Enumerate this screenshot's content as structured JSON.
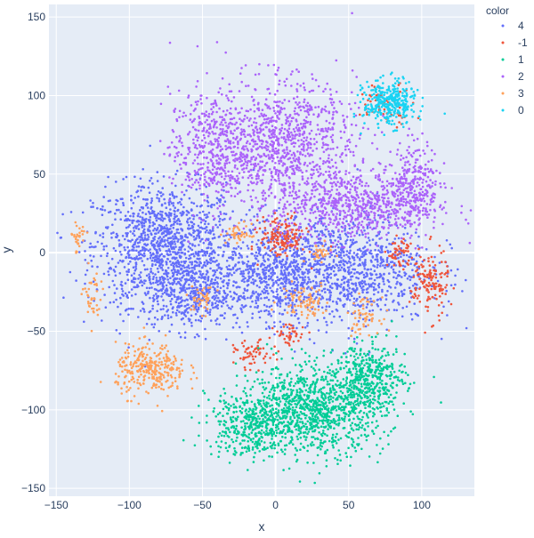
{
  "chart_data": {
    "type": "scatter",
    "title": "",
    "xlabel": "x",
    "ylabel": "y",
    "xlim": [
      -155,
      136
    ],
    "ylim": [
      -155,
      158
    ],
    "x_ticks": [
      -150,
      -100,
      -50,
      0,
      50,
      100
    ],
    "y_ticks": [
      -150,
      -100,
      -50,
      0,
      50,
      100,
      150
    ],
    "x_tick_labels": [
      "−150",
      "−100",
      "−50",
      "0",
      "50",
      "100"
    ],
    "y_tick_labels": [
      "−150",
      "−100",
      "−50",
      "0",
      "50",
      "100",
      "150"
    ],
    "grid": true,
    "legend_title": "color",
    "legend_position": "right",
    "series": [
      {
        "name": "4",
        "color": "#636efa",
        "clusters": [
          {
            "cx": -75,
            "cy": 5,
            "rx": 45,
            "ry": 35,
            "n": 1200
          },
          {
            "cx": -55,
            "cy": -25,
            "rx": 35,
            "ry": 22,
            "n": 500
          },
          {
            "cx": 45,
            "cy": -10,
            "rx": 55,
            "ry": 32,
            "n": 1100
          },
          {
            "cx": 0,
            "cy": -15,
            "rx": 30,
            "ry": 25,
            "n": 400
          }
        ]
      },
      {
        "name": "-1",
        "color": "#ef553b",
        "clusters": [
          {
            "cx": 5,
            "cy": 10,
            "rx": 14,
            "ry": 12,
            "n": 160
          },
          {
            "cx": 105,
            "cy": -20,
            "rx": 12,
            "ry": 20,
            "n": 140
          },
          {
            "cx": 85,
            "cy": 0,
            "rx": 8,
            "ry": 8,
            "n": 50
          },
          {
            "cx": -15,
            "cy": -65,
            "rx": 12,
            "ry": 8,
            "n": 60
          },
          {
            "cx": 75,
            "cy": 95,
            "rx": 18,
            "ry": 12,
            "n": 60
          },
          {
            "cx": 10,
            "cy": -52,
            "rx": 10,
            "ry": 6,
            "n": 40
          }
        ]
      },
      {
        "name": "1",
        "color": "#00cc96",
        "clusters": [
          {
            "cx": 25,
            "cy": -100,
            "rx": 45,
            "ry": 25,
            "n": 1100
          },
          {
            "cx": 65,
            "cy": -80,
            "rx": 22,
            "ry": 20,
            "n": 400
          },
          {
            "cx": -20,
            "cy": -110,
            "rx": 25,
            "ry": 18,
            "n": 300
          }
        ]
      },
      {
        "name": "2",
        "color": "#ab63fa",
        "clusters": [
          {
            "cx": 5,
            "cy": 70,
            "rx": 45,
            "ry": 35,
            "n": 1000
          },
          {
            "cx": 55,
            "cy": 30,
            "rx": 50,
            "ry": 20,
            "n": 700
          },
          {
            "cx": -45,
            "cy": 65,
            "rx": 25,
            "ry": 35,
            "n": 400
          },
          {
            "cx": 95,
            "cy": 45,
            "rx": 15,
            "ry": 25,
            "n": 250
          }
        ]
      },
      {
        "name": "3",
        "color": "#ffa15a",
        "clusters": [
          {
            "cx": -85,
            "cy": -75,
            "rx": 22,
            "ry": 15,
            "n": 300
          },
          {
            "cx": 20,
            "cy": -30,
            "rx": 15,
            "ry": 10,
            "n": 80
          },
          {
            "cx": 60,
            "cy": -40,
            "rx": 10,
            "ry": 10,
            "n": 60
          },
          {
            "cx": -25,
            "cy": 12,
            "rx": 8,
            "ry": 6,
            "n": 40
          },
          {
            "cx": -50,
            "cy": -30,
            "rx": 8,
            "ry": 8,
            "n": 40
          },
          {
            "cx": 30,
            "cy": 0,
            "rx": 8,
            "ry": 5,
            "n": 30
          },
          {
            "cx": -125,
            "cy": -30,
            "rx": 6,
            "ry": 15,
            "n": 40
          },
          {
            "cx": -135,
            "cy": 10,
            "rx": 5,
            "ry": 10,
            "n": 30
          }
        ]
      },
      {
        "name": "0",
        "color": "#19d3f3",
        "clusters": [
          {
            "cx": 78,
            "cy": 95,
            "rx": 16,
            "ry": 13,
            "n": 350
          }
        ]
      }
    ]
  }
}
